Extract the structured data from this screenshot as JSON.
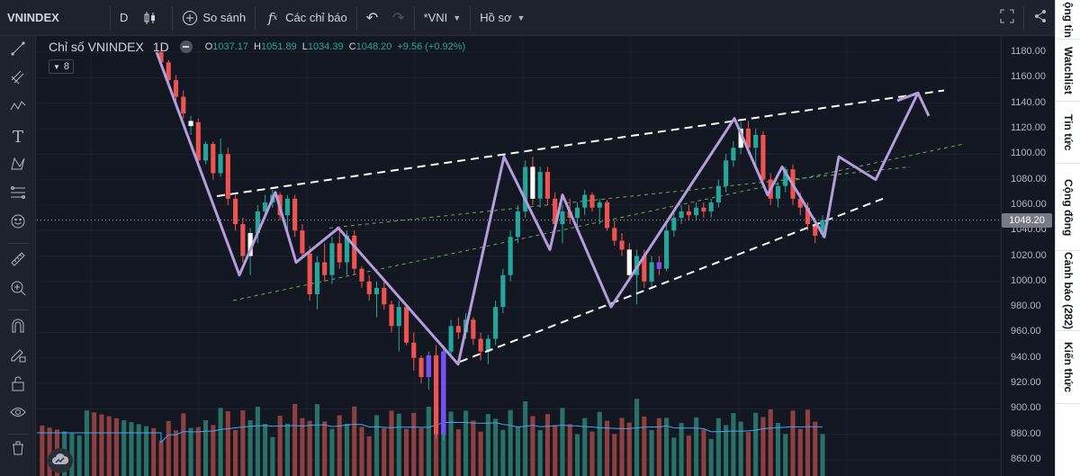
{
  "toolbar": {
    "symbol": "VNINDEX",
    "interval": "D",
    "compare_label": "So sánh",
    "indicators_label": "Các chỉ báo",
    "chart_name": "*VNI",
    "profile_label": "Hồ sơ"
  },
  "legend": {
    "title": "Chỉ số VNINDEX",
    "timeframe": "1D",
    "open_k": "O",
    "open": "1037.17",
    "high_k": "H",
    "high": "1051.89",
    "low_k": "L",
    "low": "1034.39",
    "close_k": "C",
    "close": "1048.20",
    "change": "+9.56 (+0.92%)",
    "indicator_count": "8"
  },
  "right_tabs": [
    "ộng tin",
    "Watchlist",
    "Tin tức",
    "Cộng đồng",
    "Cảnh báo (282)",
    "Kiến thức"
  ],
  "colors": {
    "background": "#131722",
    "up": "#26a69a",
    "down": "#ef5350",
    "volume_up": "#2c7a6e",
    "volume_down": "#9c4444",
    "zigzag": "#b39ddb",
    "ma_line": "#42a5f5",
    "channel": "#ffffff",
    "channel_inner": "#6fa35a"
  },
  "price_axis": {
    "last_price": "1048.20",
    "ticks": [
      "1180.00",
      "1160.00",
      "1140.00",
      "1120.00",
      "1100.00",
      "1080.00",
      "1060.00",
      "1040.00",
      "1020.00",
      "1000.00",
      "980.00",
      "960.00",
      "940.00",
      "920.00",
      "900.00",
      "880.00",
      "860.00"
    ]
  },
  "chart_data": {
    "type": "candlestick",
    "title": "Chỉ số VNINDEX",
    "timeframe": "1D",
    "ylim": [
      855,
      1188
    ],
    "last_price": 1048.2,
    "bars_estimated": [
      [
        1180,
        1182,
        1168,
        1172,
        "down"
      ],
      [
        1172,
        1174,
        1155,
        1158,
        "down"
      ],
      [
        1158,
        1162,
        1140,
        1145,
        "down"
      ],
      [
        1145,
        1150,
        1128,
        1132,
        "down"
      ],
      [
        1122,
        1130,
        1115,
        1126,
        "up"
      ],
      [
        1125,
        1128,
        1090,
        1095,
        "down"
      ],
      [
        1095,
        1110,
        1092,
        1108,
        "up"
      ],
      [
        1108,
        1110,
        1080,
        1085,
        "down"
      ],
      [
        1085,
        1112,
        1082,
        1100,
        "up"
      ],
      [
        1100,
        1105,
        1060,
        1065,
        "down"
      ],
      [
        1065,
        1070,
        1040,
        1045,
        "down"
      ],
      [
        1045,
        1050,
        1015,
        1020,
        "down"
      ],
      [
        1020,
        1042,
        1005,
        1038,
        "up"
      ],
      [
        1038,
        1060,
        1030,
        1055,
        "up"
      ],
      [
        1055,
        1068,
        1050,
        1062,
        "up"
      ],
      [
        1062,
        1072,
        1058,
        1068,
        "up"
      ],
      [
        1068,
        1070,
        1048,
        1052,
        "down"
      ],
      [
        1052,
        1068,
        1040,
        1065,
        "up"
      ],
      [
        1065,
        1068,
        1035,
        1040,
        "down"
      ],
      [
        1040,
        1045,
        1018,
        1022,
        "down"
      ],
      [
        1022,
        1028,
        985,
        990,
        "down"
      ],
      [
        990,
        1020,
        978,
        1015,
        "up"
      ],
      [
        1015,
        1030,
        1000,
        1005,
        "down"
      ],
      [
        1005,
        1035,
        998,
        1030,
        "up"
      ],
      [
        1030,
        1040,
        1010,
        1015,
        "down"
      ],
      [
        1015,
        1040,
        1005,
        1036,
        "up"
      ],
      [
        1036,
        1040,
        1005,
        1010,
        "down"
      ],
      [
        1010,
        1012,
        995,
        1000,
        "down"
      ],
      [
        1000,
        1005,
        985,
        990,
        "down"
      ],
      [
        990,
        1000,
        972,
        995,
        "up"
      ],
      [
        995,
        1002,
        978,
        982,
        "down"
      ],
      [
        982,
        985,
        960,
        965,
        "down"
      ],
      [
        965,
        985,
        945,
        980,
        "up"
      ],
      [
        980,
        982,
        950,
        952,
        "down"
      ],
      [
        952,
        960,
        930,
        940,
        "down"
      ],
      [
        940,
        942,
        920,
        925,
        "down"
      ],
      [
        925,
        945,
        915,
        942,
        "up"
      ],
      [
        942,
        950,
        876,
        880,
        "down"
      ],
      [
        880,
        950,
        875,
        945,
        "up"
      ],
      [
        945,
        970,
        940,
        965,
        "up"
      ],
      [
        965,
        972,
        955,
        960,
        "down"
      ],
      [
        960,
        975,
        955,
        970,
        "up"
      ],
      [
        970,
        972,
        950,
        955,
        "down"
      ],
      [
        955,
        960,
        938,
        945,
        "down"
      ],
      [
        945,
        958,
        935,
        955,
        "up"
      ],
      [
        955,
        985,
        950,
        980,
        "up"
      ],
      [
        980,
        1010,
        975,
        1005,
        "up"
      ],
      [
        1005,
        1040,
        1000,
        1035,
        "up"
      ],
      [
        1035,
        1060,
        1030,
        1055,
        "up"
      ],
      [
        1055,
        1095,
        1050,
        1090,
        "up"
      ],
      [
        1090,
        1098,
        1060,
        1065,
        "down"
      ],
      [
        1065,
        1090,
        1058,
        1086,
        "up"
      ],
      [
        1086,
        1090,
        1060,
        1065,
        "down"
      ],
      [
        1065,
        1070,
        1040,
        1045,
        "down"
      ],
      [
        1045,
        1060,
        1030,
        1055,
        "up"
      ],
      [
        1055,
        1065,
        1045,
        1050,
        "down"
      ],
      [
        1050,
        1062,
        1040,
        1058,
        "up"
      ],
      [
        1058,
        1072,
        1052,
        1068,
        "up"
      ],
      [
        1068,
        1070,
        1055,
        1058,
        "down"
      ],
      [
        1058,
        1065,
        1045,
        1062,
        "up"
      ],
      [
        1062,
        1064,
        1040,
        1042,
        "down"
      ],
      [
        1042,
        1048,
        1028,
        1032,
        "down"
      ],
      [
        1032,
        1038,
        1020,
        1025,
        "down"
      ],
      [
        1025,
        1030,
        1000,
        1005,
        "down"
      ],
      [
        1005,
        1025,
        982,
        1020,
        "up"
      ],
      [
        1020,
        1025,
        995,
        1000,
        "down"
      ],
      [
        1000,
        1020,
        995,
        1015,
        "up"
      ],
      [
        1015,
        1020,
        1005,
        1010,
        "down"
      ],
      [
        1010,
        1045,
        1008,
        1040,
        "up"
      ],
      [
        1040,
        1055,
        1035,
        1050,
        "up"
      ],
      [
        1050,
        1060,
        1045,
        1055,
        "up"
      ],
      [
        1055,
        1060,
        1048,
        1052,
        "down"
      ],
      [
        1052,
        1062,
        1048,
        1058,
        "up"
      ],
      [
        1058,
        1062,
        1050,
        1055,
        "down"
      ],
      [
        1055,
        1065,
        1050,
        1062,
        "up"
      ],
      [
        1062,
        1080,
        1058,
        1075,
        "up"
      ],
      [
        1075,
        1100,
        1070,
        1095,
        "up"
      ],
      [
        1095,
        1110,
        1090,
        1105,
        "up"
      ],
      [
        1105,
        1125,
        1100,
        1120,
        "up"
      ],
      [
        1120,
        1126,
        1100,
        1105,
        "down"
      ],
      [
        1105,
        1120,
        1090,
        1115,
        "up"
      ],
      [
        1115,
        1118,
        1075,
        1080,
        "down"
      ],
      [
        1080,
        1085,
        1060,
        1065,
        "down"
      ],
      [
        1065,
        1078,
        1058,
        1075,
        "up"
      ],
      [
        1075,
        1090,
        1070,
        1088,
        "up"
      ],
      [
        1088,
        1092,
        1060,
        1065,
        "down"
      ],
      [
        1065,
        1070,
        1052,
        1058,
        "down"
      ],
      [
        1058,
        1062,
        1040,
        1045,
        "down"
      ],
      [
        1045,
        1050,
        1030,
        1036,
        "down"
      ],
      [
        1037.17,
        1051.89,
        1034.39,
        1048.2,
        "up"
      ]
    ],
    "zigzag": [
      [
        1180,
        0
      ],
      [
        1005,
        1
      ],
      [
        1070,
        2
      ],
      [
        1015,
        3
      ],
      [
        1042,
        4
      ],
      [
        935,
        5
      ],
      [
        1098,
        6
      ],
      [
        1025,
        7
      ],
      [
        1068,
        8
      ],
      [
        980,
        9
      ],
      [
        1128,
        10
      ],
      [
        1068,
        11
      ],
      [
        1090,
        12
      ],
      [
        1035,
        13
      ],
      [
        1098,
        14
      ],
      [
        1080,
        15
      ],
      [
        1148,
        16
      ],
      [
        1130,
        17
      ]
    ],
    "channel_upper": [
      [
        1065,
        0
      ],
      [
        1150,
        1
      ]
    ],
    "channel_lower": [
      [
        935,
        0
      ],
      [
        1065,
        1
      ]
    ],
    "inner_lines": [
      [
        985,
        0
      ],
      [
        1108,
        1
      ]
    ],
    "ma_volume": "line"
  }
}
